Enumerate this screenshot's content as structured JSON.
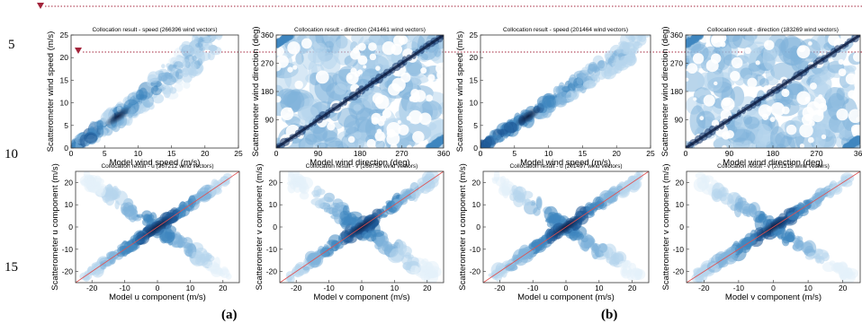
{
  "line_numbers": [
    "5",
    "10",
    "15"
  ],
  "panel_labels": [
    "(a)",
    "(b)"
  ],
  "colors": {
    "guide": "#a3243b",
    "diagonal": "#e05050",
    "density_low": "#d8ebf7",
    "density_mid": "#3f86bf",
    "density_high": "#0b1a3e"
  },
  "chart_data": [
    {
      "type": "heatmap",
      "title": "Collocation result - speed (266396 wind vectors)",
      "xlabel": "Model wind speed (m/s)",
      "ylabel": "Scatterometer wind speed (m/s)",
      "xlim": [
        0,
        25
      ],
      "ylim": [
        0,
        25
      ],
      "xticks": [
        "0",
        "5",
        "10",
        "15",
        "20",
        "25"
      ],
      "yticks": [
        "0",
        "5",
        "10",
        "15",
        "20",
        "25"
      ],
      "grid": false,
      "diagonal": false,
      "count": 266396
    },
    {
      "type": "heatmap",
      "title": "Collocation result - direction (241461 wind vectors)",
      "xlabel": "Model wind direction (deg)",
      "ylabel": "Scatterometer wind direction (deg)",
      "xlim": [
        0,
        360
      ],
      "ylim": [
        0,
        360
      ],
      "xticks": [
        "0",
        "90",
        "180",
        "270",
        "360"
      ],
      "yticks": [
        "90",
        "180",
        "270",
        "360"
      ],
      "grid": false,
      "diagonal": false,
      "count": 241461
    },
    {
      "type": "heatmap",
      "title": "Collocation result - speed (201464 wind vectors)",
      "xlabel": "Model wind speed (m/s)",
      "ylabel": "Scatterometer wind speed (m/s)",
      "xlim": [
        0,
        25
      ],
      "ylim": [
        0,
        25
      ],
      "xticks": [
        "0",
        "5",
        "10",
        "15",
        "20",
        "25"
      ],
      "yticks": [
        "0",
        "5",
        "10",
        "15",
        "20",
        "25"
      ],
      "grid": false,
      "diagonal": false,
      "count": 201464
    },
    {
      "type": "heatmap",
      "title": "Collocation result - direction (183269 wind vectors)",
      "xlabel": "Model wind direction (deg)",
      "ylabel": "Scatterometer wind direction (deg)",
      "xlim": [
        0,
        360
      ],
      "ylim": [
        0,
        360
      ],
      "xticks": [
        "0",
        "90",
        "180",
        "270",
        "360"
      ],
      "yticks": [
        "90",
        "180",
        "270",
        "360"
      ],
      "grid": false,
      "diagonal": false,
      "count": 183269
    },
    {
      "type": "heatmap",
      "title": "Collocation result - u (267212 wind vectors)",
      "xlabel": "Model u component (m/s)",
      "ylabel": "Scatterometer u component (m/s)",
      "xlim": [
        -25,
        25
      ],
      "ylim": [
        -25,
        25
      ],
      "xticks": [
        "-20",
        "-10",
        "0",
        "10",
        "20"
      ],
      "yticks": [
        "-20",
        "-10",
        "0",
        "10",
        "20"
      ],
      "grid": false,
      "diagonal": true,
      "count": 267212
    },
    {
      "type": "heatmap",
      "title": "Collocation result - v (266758 wind vectors)",
      "xlabel": "Model v component (m/s)",
      "ylabel": "Scatterometer v component (m/s)",
      "xlim": [
        -25,
        25
      ],
      "ylim": [
        -25,
        25
      ],
      "xticks": [
        "-20",
        "-10",
        "0",
        "10",
        "20"
      ],
      "yticks": [
        "-20",
        "-10",
        "0",
        "10",
        "20"
      ],
      "grid": false,
      "diagonal": true,
      "count": 266758
    },
    {
      "type": "heatmap",
      "title": "Collocation result - u (201497 wind vectors)",
      "xlabel": "Model u component (m/s)",
      "ylabel": "Scatterometer u component (m/s)",
      "xlim": [
        -25,
        25
      ],
      "ylim": [
        -25,
        25
      ],
      "xticks": [
        "-20",
        "-10",
        "0",
        "10",
        "20"
      ],
      "yticks": [
        "-20",
        "-10",
        "0",
        "10",
        "20"
      ],
      "grid": false,
      "diagonal": true,
      "count": 201497
    },
    {
      "type": "heatmap",
      "title": "Collocation result - v (201518 wind vectors)",
      "xlabel": "Model v component (m/s)",
      "ylabel": "Scatterometer v component (m/s)",
      "xlim": [
        -25,
        25
      ],
      "ylim": [
        -25,
        25
      ],
      "xticks": [
        "-20",
        "-10",
        "0",
        "10",
        "20"
      ],
      "yticks": [
        "-20",
        "-10",
        "0",
        "10",
        "20"
      ],
      "grid": false,
      "diagonal": true,
      "count": 201518
    }
  ]
}
